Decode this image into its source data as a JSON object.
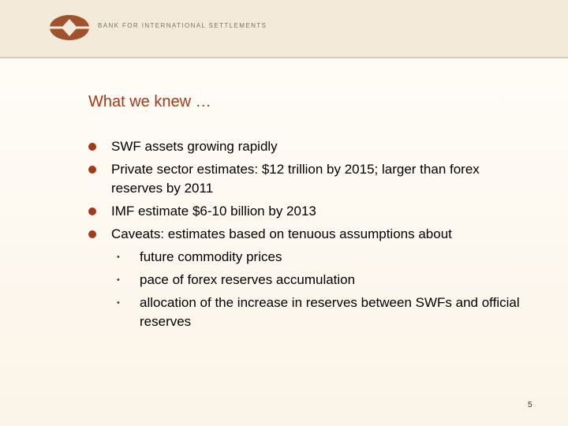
{
  "header": {
    "org_name": "BANK FOR INTERNATIONAL SETTLEMENTS",
    "logo_icon": "bis-logo-icon"
  },
  "slide": {
    "title": "What we knew …",
    "bullets": [
      {
        "text": "SWF assets growing rapidly"
      },
      {
        "text": "Private sector estimates: $12 trillion by 2015; larger than forex reserves by 2011"
      },
      {
        "text": "IMF estimate $6-10 billion by 2013"
      },
      {
        "text": "Caveats: estimates based on tenuous assumptions about",
        "sub": [
          "future commodity prices",
          "pace of forex reserves accumulation",
          "allocation of the increase in reserves between SWFs and official reserves"
        ]
      }
    ],
    "page_number": "5"
  },
  "colors": {
    "accent": "#a23a1a",
    "header_bg": "#f4ead9"
  }
}
